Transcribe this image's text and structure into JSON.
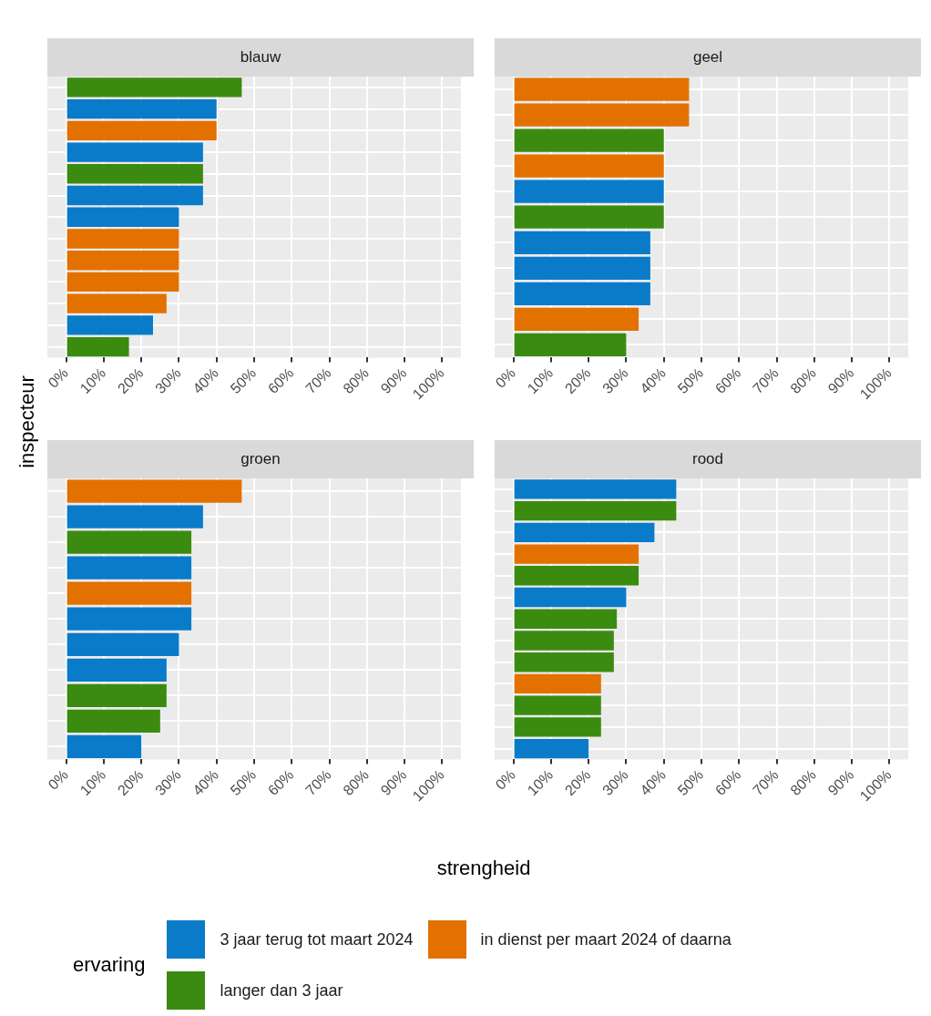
{
  "chart_data": [
    {
      "type": "bar",
      "title": "blauw",
      "orientation": "horizontal",
      "xlabel": "strengheid",
      "ylabel": "inspecteur",
      "legend": "bottom",
      "legend_title": "ervaring",
      "grid": true,
      "tick_labels": "x",
      "categories": [
        null,
        null,
        null,
        null,
        null,
        null,
        null,
        null,
        null,
        null,
        null,
        null,
        null
      ],
      "xlim": [
        -5,
        105
      ],
      "xticks": [
        {
          "value": 0,
          "label": "0%"
        },
        {
          "value": 10,
          "label": "10%"
        },
        {
          "value": 20,
          "label": "20%"
        },
        {
          "value": 30,
          "label": "30%"
        },
        {
          "value": 40,
          "label": "40%"
        },
        {
          "value": 50,
          "label": "50%"
        },
        {
          "value": 60,
          "label": "60%"
        },
        {
          "value": 70,
          "label": "70%"
        },
        {
          "value": 80,
          "label": "80%"
        },
        {
          "value": 90,
          "label": "90%"
        },
        {
          "value": 100,
          "label": "100%"
        }
      ],
      "series": [
        {
          "name": "3 jaar terug tot maart 2024",
          "color": "#0a7bc9",
          "values": [
            null,
            40,
            null,
            36.4,
            null,
            36.4,
            30,
            null,
            null,
            null,
            null,
            23.1,
            null
          ]
        },
        {
          "name": "in dienst per maart 2024 of daarna",
          "color": "#e37100",
          "values": [
            null,
            null,
            40,
            null,
            null,
            null,
            null,
            30,
            30,
            30,
            26.7,
            null,
            null
          ]
        },
        {
          "name": "langer dan 3 jaar",
          "color": "#3b8b10",
          "values": [
            46.7,
            null,
            null,
            null,
            36.4,
            null,
            null,
            null,
            null,
            null,
            null,
            null,
            16.7
          ]
        }
      ]
    },
    {
      "type": "bar",
      "title": "geel",
      "orientation": "horizontal",
      "grid": true,
      "tick_labels": "x",
      "categories": [
        null,
        null,
        null,
        null,
        null,
        null,
        null,
        null,
        null,
        null,
        null
      ],
      "xlim": [
        -5,
        105
      ],
      "xticks": [
        {
          "value": 0,
          "label": "0%"
        },
        {
          "value": 10,
          "label": "10%"
        },
        {
          "value": 20,
          "label": "20%"
        },
        {
          "value": 30,
          "label": "30%"
        },
        {
          "value": 40,
          "label": "40%"
        },
        {
          "value": 50,
          "label": "50%"
        },
        {
          "value": 60,
          "label": "60%"
        },
        {
          "value": 70,
          "label": "70%"
        },
        {
          "value": 80,
          "label": "80%"
        },
        {
          "value": 90,
          "label": "90%"
        },
        {
          "value": 100,
          "label": "100%"
        }
      ],
      "series": [
        {
          "color": "#0a7bc9",
          "values": [
            null,
            null,
            null,
            null,
            40,
            null,
            36.4,
            36.4,
            36.4,
            null,
            null
          ]
        },
        {
          "color": "#e37100",
          "values": [
            46.7,
            46.7,
            null,
            40,
            null,
            null,
            null,
            null,
            null,
            33.3,
            null
          ]
        },
        {
          "color": "#3b8b10",
          "values": [
            null,
            null,
            40,
            null,
            null,
            40,
            null,
            null,
            null,
            null,
            30
          ]
        }
      ]
    },
    {
      "type": "bar",
      "title": "groen",
      "orientation": "horizontal",
      "grid": true,
      "tick_labels": "x",
      "categories": [
        null,
        null,
        null,
        null,
        null,
        null,
        null,
        null,
        null,
        null,
        null
      ],
      "xlim": [
        -5,
        105
      ],
      "xticks": [
        {
          "value": 0,
          "label": "0%"
        },
        {
          "value": 10,
          "label": "10%"
        },
        {
          "value": 20,
          "label": "20%"
        },
        {
          "value": 30,
          "label": "30%"
        },
        {
          "value": 40,
          "label": "40%"
        },
        {
          "value": 50,
          "label": "50%"
        },
        {
          "value": 60,
          "label": "60%"
        },
        {
          "value": 70,
          "label": "70%"
        },
        {
          "value": 80,
          "label": "80%"
        },
        {
          "value": 90,
          "label": "90%"
        },
        {
          "value": 100,
          "label": "100%"
        }
      ],
      "series": [
        {
          "color": "#0a7bc9",
          "values": [
            null,
            36.4,
            null,
            33.3,
            null,
            33.3,
            30,
            26.7,
            null,
            null,
            20
          ]
        },
        {
          "color": "#e37100",
          "values": [
            46.7,
            null,
            null,
            null,
            33.3,
            null,
            null,
            null,
            null,
            null,
            null
          ]
        },
        {
          "color": "#3b8b10",
          "values": [
            null,
            null,
            33.3,
            null,
            null,
            null,
            null,
            null,
            26.7,
            25,
            null
          ]
        }
      ]
    },
    {
      "type": "bar",
      "title": "rood",
      "orientation": "horizontal",
      "grid": true,
      "tick_labels": "x",
      "categories": [
        null,
        null,
        null,
        null,
        null,
        null,
        null,
        null,
        null,
        null,
        null,
        null,
        null
      ],
      "xlim": [
        -5,
        105
      ],
      "xticks": [
        {
          "value": 0,
          "label": "0%"
        },
        {
          "value": 10,
          "label": "10%"
        },
        {
          "value": 20,
          "label": "20%"
        },
        {
          "value": 30,
          "label": "30%"
        },
        {
          "value": 40,
          "label": "40%"
        },
        {
          "value": 50,
          "label": "50%"
        },
        {
          "value": 60,
          "label": "60%"
        },
        {
          "value": 70,
          "label": "70%"
        },
        {
          "value": 80,
          "label": "80%"
        },
        {
          "value": 90,
          "label": "90%"
        },
        {
          "value": 100,
          "label": "100%"
        }
      ],
      "series": [
        {
          "color": "#0a7bc9",
          "values": [
            43.3,
            null,
            37.5,
            null,
            null,
            30,
            null,
            null,
            null,
            null,
            null,
            null,
            20
          ]
        },
        {
          "color": "#e37100",
          "values": [
            null,
            null,
            null,
            33.3,
            null,
            null,
            null,
            null,
            null,
            23.3,
            null,
            null,
            null
          ]
        },
        {
          "color": "#3b8b10",
          "values": [
            null,
            43.3,
            null,
            null,
            33.3,
            null,
            27.5,
            26.7,
            26.7,
            null,
            23.3,
            23.3,
            null
          ]
        }
      ]
    }
  ]
}
